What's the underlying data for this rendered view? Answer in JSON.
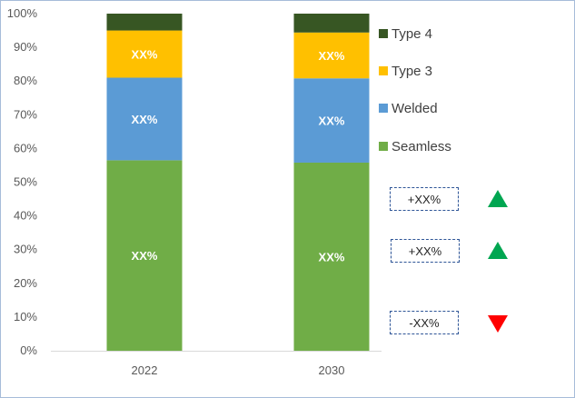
{
  "chart_data": {
    "type": "bar",
    "stacked": true,
    "categories": [
      "2022",
      "2030"
    ],
    "series": [
      {
        "name": "Seamless",
        "color": "#70ad47",
        "values": [
          56.5,
          55.8
        ],
        "labels": [
          "XX%",
          "XX%"
        ]
      },
      {
        "name": "Welded",
        "color": "#5b9bd5",
        "values": [
          24.5,
          25.0
        ],
        "labels": [
          "XX%",
          "XX%"
        ]
      },
      {
        "name": "Type 3",
        "color": "#ffc000",
        "values": [
          14.0,
          13.6
        ],
        "labels": [
          "XX%",
          "XX%"
        ]
      },
      {
        "name": "Type 4",
        "color": "#375623",
        "values": [
          5.0,
          5.6
        ],
        "labels": [
          "",
          ""
        ]
      }
    ],
    "ylim": [
      0,
      100
    ],
    "yticks": [
      "0%",
      "10%",
      "20%",
      "30%",
      "40%",
      "50%",
      "60%",
      "70%",
      "80%",
      "90%",
      "100%"
    ],
    "legend_order": [
      "Type 4",
      "Type 3",
      "Welded",
      "Seamless"
    ],
    "legend_position": "right",
    "grid": false
  },
  "callouts": [
    {
      "text": "+XX%",
      "trend": "up",
      "color": "#00a651"
    },
    {
      "text": "+XX%",
      "trend": "up",
      "color": "#00a651"
    },
    {
      "text": "-XX%",
      "trend": "down",
      "color": "#ff0000"
    }
  ]
}
